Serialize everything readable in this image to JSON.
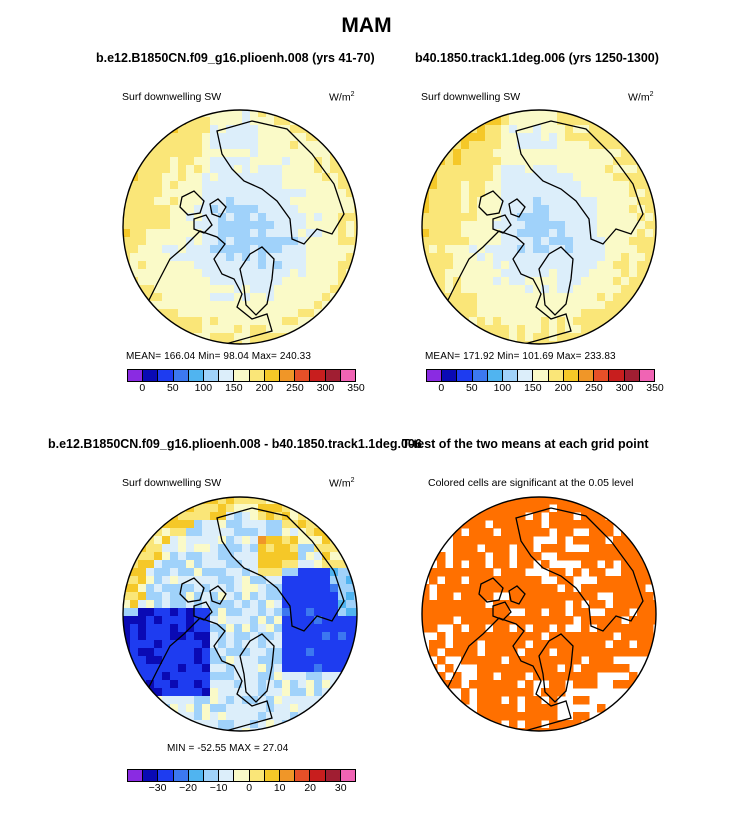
{
  "figure": {
    "title": "MAM",
    "left_case": "b.e12.B1850CN.f09_g16.plioenh.008 (yrs 41-70)",
    "right_case": "b40.1850.track1.1deg.006 (yrs 1250-1300)",
    "diff_title": "b.e12.B1850CN.f09_g16.plioenh.008 - b40.1850.track1.1deg.006",
    "ttest_title": "T-test of the two means at each grid point"
  },
  "panels": {
    "p1": {
      "variable": "Surf downwelling SW",
      "units": "W/m",
      "units_sup": "2",
      "stats": "MEAN= 166.04   Min=  98.04   Max= 240.33"
    },
    "p2": {
      "variable": "Surf downwelling SW",
      "units": "W/m",
      "units_sup": "2",
      "stats": "MEAN= 171.92   Min= 101.69   Max= 233.83"
    },
    "p3": {
      "variable": "Surf downwelling SW",
      "units": "W/m",
      "units_sup": "2",
      "stats": "MIN = -52.55  MAX =  27.04"
    },
    "p4": {
      "note": "Colored cells are significant at the 0.05 level"
    }
  },
  "chart_data": [
    {
      "type": "heatmap",
      "panel": "p1",
      "projection": "north polar stereographic",
      "variable": "Surf downwelling SW",
      "units": "W/m2",
      "mean": 166.04,
      "min": 98.04,
      "max": 240.33,
      "colorbar_levels": [
        0,
        25,
        50,
        75,
        100,
        125,
        150,
        175,
        200,
        225,
        250,
        275,
        300,
        325,
        350
      ],
      "colorbar_tick_labels": [
        "0",
        "50",
        "100",
        "150",
        "200",
        "250",
        "300",
        "350"
      ]
    },
    {
      "type": "heatmap",
      "panel": "p2",
      "projection": "north polar stereographic",
      "variable": "Surf downwelling SW",
      "units": "W/m2",
      "mean": 171.92,
      "min": 101.69,
      "max": 233.83,
      "colorbar_levels": [
        0,
        25,
        50,
        75,
        100,
        125,
        150,
        175,
        200,
        225,
        250,
        275,
        300,
        325,
        350
      ],
      "colorbar_tick_labels": [
        "0",
        "50",
        "100",
        "150",
        "200",
        "250",
        "300",
        "350"
      ]
    },
    {
      "type": "heatmap",
      "panel": "p3",
      "projection": "north polar stereographic",
      "variable": "Surf downwelling SW (difference)",
      "units": "W/m2",
      "min": -52.55,
      "max": 27.04,
      "colorbar_levels": [
        -35,
        -30,
        -25,
        -20,
        -15,
        -10,
        -5,
        0,
        5,
        10,
        15,
        20,
        25,
        30,
        35
      ],
      "colorbar_tick_labels": [
        "-30",
        "-20",
        "-10",
        "0",
        "10",
        "20",
        "30"
      ]
    },
    {
      "type": "heatmap",
      "panel": "p4",
      "projection": "north polar stereographic",
      "description": "Colored cells are significant at the 0.05 level",
      "significance_level": 0.05
    }
  ],
  "palette": [
    "#8a2be2",
    "#0a0ab4",
    "#1e3cf0",
    "#3c78f0",
    "#50b4f0",
    "#a0d2fa",
    "#dceefa",
    "#fafac8",
    "#fae678",
    "#f5c828",
    "#f09628",
    "#e65028",
    "#c81e1e",
    "#a01e32",
    "#f064b4"
  ],
  "colors": {
    "sig_fill": "#ff7000",
    "coast": "#000000"
  }
}
